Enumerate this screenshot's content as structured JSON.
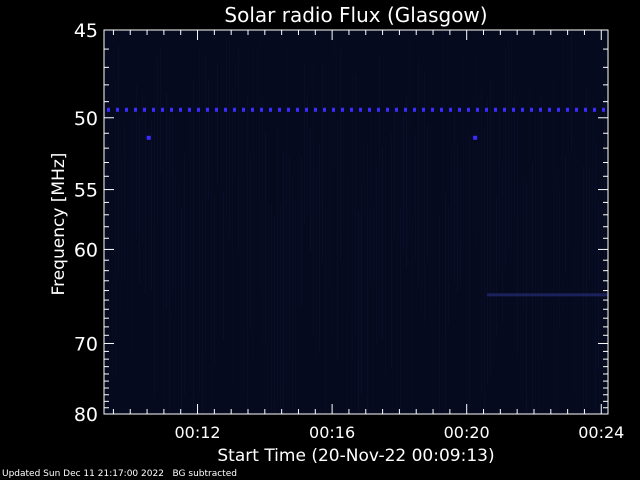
{
  "chart_data": {
    "type": "heatmap",
    "title": "Solar radio Flux (Glasgow)",
    "xlabel": "Start Time (20-Nov-22 00:09:13)",
    "ylabel": "Frequency [MHz]",
    "x_range_minutes": [
      9.22,
      24.2
    ],
    "y_range_mhz": [
      45,
      80
    ],
    "x_ticks": [
      {
        "label": "00:12",
        "minutes": 12
      },
      {
        "label": "00:16",
        "minutes": 16
      },
      {
        "label": "00:20",
        "minutes": 20
      },
      {
        "label": "00:24",
        "minutes": 24
      }
    ],
    "y_ticks": [
      45,
      50,
      55,
      60,
      70,
      80
    ],
    "background_color": "#060a1e",
    "signal_color": "#3a2cff",
    "features": {
      "interference_line_mhz": 49.5,
      "spot_points": [
        {
          "minutes": 10.55,
          "mhz": 51.3
        },
        {
          "minutes": 20.25,
          "mhz": 51.3
        }
      ],
      "faint_band": {
        "mhz": 64.5,
        "from_minutes": 20.6,
        "to_minutes": 24.2
      }
    }
  },
  "footer": {
    "updated": "Updated Sun Dec 11 21:17:00 2022",
    "note": "BG subtracted"
  }
}
